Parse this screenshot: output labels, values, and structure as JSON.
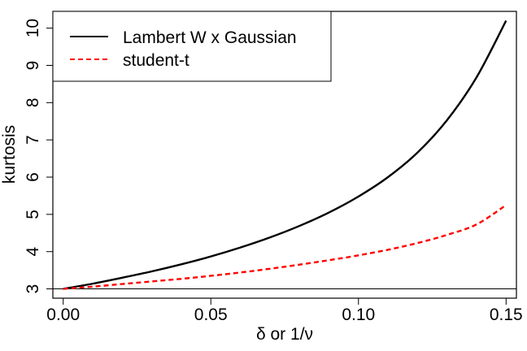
{
  "chart_data": {
    "type": "line",
    "xlabel_sym": "δ",
    "xlabel_mid": " or 1/",
    "xlabel_sym2": "ν",
    "ylabel": "kurtosis",
    "xlim": [
      -0.0035,
      0.1535
    ],
    "ylim": [
      2.75,
      10.45
    ],
    "x_ticks": [
      0.0,
      0.05,
      0.1,
      0.15
    ],
    "x_tick_labels": [
      "0.00",
      "0.05",
      "0.10",
      "0.15"
    ],
    "y_ticks": [
      3,
      4,
      5,
      6,
      7,
      8,
      9,
      10
    ],
    "y_tick_labels": [
      "3",
      "4",
      "5",
      "6",
      "7",
      "8",
      "9",
      "10"
    ],
    "grid": false,
    "legend_position": "top-left",
    "reference_line_y": 3,
    "series": [
      {
        "name": "Lambert W x Gaussian",
        "color": "#000000",
        "dash": "solid",
        "x": [
          0.0,
          0.01,
          0.02,
          0.03,
          0.04,
          0.05,
          0.06,
          0.07,
          0.08,
          0.09,
          0.1,
          0.11,
          0.12,
          0.13,
          0.14,
          0.15
        ],
        "y": [
          3.0,
          3.14,
          3.3,
          3.47,
          3.66,
          3.87,
          4.11,
          4.38,
          4.69,
          5.05,
          5.48,
          6.0,
          6.66,
          7.53,
          8.68,
          10.2
        ]
      },
      {
        "name": "student-t",
        "color": "#ff0000",
        "dash": "dashed",
        "x": [
          0.0,
          0.01,
          0.02,
          0.03,
          0.04,
          0.05,
          0.06,
          0.07,
          0.08,
          0.09,
          0.1,
          0.11,
          0.12,
          0.13,
          0.14,
          0.15
        ],
        "y": [
          3.0,
          3.06,
          3.13,
          3.2,
          3.27,
          3.35,
          3.44,
          3.54,
          3.65,
          3.77,
          3.9,
          4.05,
          4.23,
          4.45,
          4.73,
          5.25
        ]
      }
    ]
  }
}
